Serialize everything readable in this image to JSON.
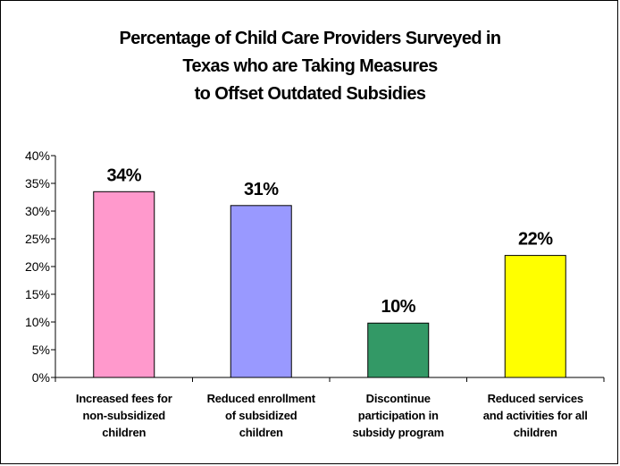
{
  "chart_data": {
    "type": "bar",
    "title_lines": [
      "Percentage of Child Care Providers Surveyed in",
      "Texas who are Taking Measures",
      "to Offset Outdated Subsidies"
    ],
    "categories": [
      [
        "Increased fees for",
        "non-subsidized",
        "children"
      ],
      [
        "Reduced enrollment",
        "of subsidized",
        "children"
      ],
      [
        "Discontinue",
        "participation in",
        "subsidy program"
      ],
      [
        "Reduced services",
        "and activities for all",
        "children"
      ]
    ],
    "values": [
      33.5,
      31,
      9.8,
      22
    ],
    "data_labels": [
      "34%",
      "31%",
      "10%",
      "22%"
    ],
    "colors": [
      "#ff99cc",
      "#9999ff",
      "#339966",
      "#ffff00"
    ],
    "ylim": [
      0,
      40
    ],
    "yticks": [
      "0%",
      "5%",
      "10%",
      "15%",
      "20%",
      "25%",
      "30%",
      "35%",
      "40%"
    ],
    "grid": false,
    "legend": "none"
  }
}
